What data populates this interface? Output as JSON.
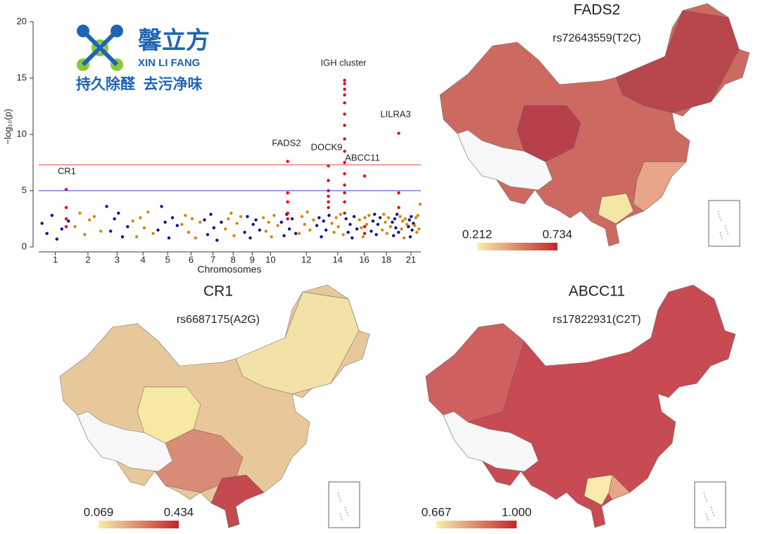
{
  "logo": {
    "name_cn": "馨立方",
    "name_en": "XIN LI FANG",
    "slogan": "持久除醛  去污净味"
  },
  "chart_data": [
    {
      "type": "manhattan",
      "ylabel": "−log₁₀(p)",
      "xlabel": "Chromosomes",
      "xlim": [
        0,
        2880
      ],
      "ylim": [
        0,
        20
      ],
      "yticks": [
        0,
        5,
        10,
        15,
        20
      ],
      "xticks": [
        {
          "value": 125,
          "label": "1"
        },
        {
          "value": 371,
          "label": "2"
        },
        {
          "value": 591,
          "label": "3"
        },
        {
          "value": 786,
          "label": "4"
        },
        {
          "value": 972,
          "label": "5"
        },
        {
          "value": 1148,
          "label": "6"
        },
        {
          "value": 1313,
          "label": "7"
        },
        {
          "value": 1465,
          "label": "8"
        },
        {
          "value": 1609,
          "label": "9"
        },
        {
          "value": 1747,
          "label": "10"
        },
        {
          "value": 2017,
          "label": "12"
        },
        {
          "value": 2253,
          "label": "14"
        },
        {
          "value": 2453,
          "label": "16"
        },
        {
          "value": 2620,
          "label": "18"
        },
        {
          "value": 2805,
          "label": "21"
        }
      ],
      "hlines": [
        {
          "value": 7.3,
          "color": "#e8413c"
        },
        {
          "value": 5,
          "color": "#3d3dd8"
        }
      ],
      "annotations": [
        "CR1",
        "FADS2",
        "DOCK9",
        "IGH cluster",
        "ABCC11",
        "LILRA3"
      ],
      "series": [
        {
          "color": "#10108a",
          "x": [
            25,
            62,
            100,
            137,
            174,
            224,
            512,
            542,
            571,
            601,
            631,
            670,
            899,
            926,
            953,
            981,
            1008,
            1044,
            1249,
            1273,
            1297,
            1320,
            1344,
            1376,
            1552,
            1573,
            1594,
            1616,
            1637,
            1665,
            1829,
            1849,
            1869,
            1889,
            1910,
            1937,
            2096,
            2113,
            2130,
            2147,
            2165,
            2188,
            2316,
            2332,
            2347,
            2362,
            2377,
            2398,
            2506,
            2519,
            2531,
            2544,
            2556,
            2573,
            2665,
            2674,
            2683,
            2691,
            2700,
            2712,
            2786,
            2793,
            2800,
            2807,
            2814,
            2824
          ],
          "values": [
            2.1,
            1.2,
            2.8,
            0.7,
            1.6,
            2.3,
            3.6,
            1.4,
            2.5,
            3.0,
            0.9,
            1.8,
            1.5,
            3.6,
            2.2,
            0.8,
            2.6,
            1.9,
            2.4,
            1.1,
            2.9,
            1.7,
            0.6,
            2.2,
            1.3,
            2.7,
            0.8,
            2.0,
            2.4,
            1.5,
            2.2,
            1.0,
            2.9,
            1.6,
            2.5,
            1.2,
            1.9,
            2.6,
            0.9,
            2.3,
            1.5,
            2.8,
            2.5,
            1.3,
            2.0,
            0.8,
            2.7,
            1.6,
            1.4,
            2.3,
            2.9,
            1.1,
            2.0,
            2.6,
            2.2,
            1.0,
            2.5,
            1.7,
            2.9,
            1.3,
            1.8,
            2.4,
            0.9,
            2.7,
            1.5,
            2.1
          ]
        },
        {
          "color": "#d4880e",
          "x": [
            273,
            310,
            346,
            383,
            419,
            468,
            709,
            738,
            766,
            795,
            824,
            862,
            1079,
            1105,
            1130,
            1156,
            1182,
            1216,
            1407,
            1429,
            1450,
            1472,
            1494,
            1523,
            1693,
            1713,
            1733,
            1754,
            1774,
            1801,
            1963,
            1984,
            2004,
            2024,
            2044,
            2071,
            2210,
            2226,
            2242,
            2258,
            2274,
            2295,
            2417,
            2431,
            2444,
            2458,
            2471,
            2489,
            2589,
            2601,
            2612,
            2624,
            2636,
            2651,
            2724,
            2734,
            2743,
            2753,
            2762,
            2775,
            2834,
            2842,
            2849,
            2857,
            2865,
            2875
          ],
          "values": [
            1.8,
            3.0,
            1.1,
            2.4,
            2.7,
            1.4,
            2.3,
            0.9,
            2.6,
            1.7,
            3.1,
            1.2,
            2.0,
            2.8,
            1.3,
            2.5,
            0.8,
            2.2,
            1.6,
            2.5,
            3.0,
            1.0,
            2.1,
            2.7,
            2.6,
            1.4,
            2.2,
            0.9,
            2.8,
            1.9,
            1.2,
            2.7,
            2.0,
            3.1,
            1.5,
            2.4,
            2.1,
            1.3,
            2.6,
            1.8,
            2.9,
            1.1,
            2.4,
            1.7,
            0.9,
            2.6,
            2.0,
            2.8,
            1.5,
            2.9,
            2.2,
            1.2,
            2.6,
            1.8,
            2.7,
            1.6,
            2.3,
            0.8,
            2.5,
            2.0,
            1.9,
            2.6,
            1.3,
            2.8,
            1.6,
            3.8
          ]
        },
        {
          "color": "#e8000b",
          "x": [
            207,
            207,
            207,
            207,
            1876,
            1876,
            1876,
            1876,
            1876,
            2183,
            2183,
            2183,
            2183,
            2183,
            2183,
            2305,
            2305,
            2305,
            2305,
            2305,
            2305,
            2305,
            2305,
            2305,
            2305,
            2305,
            2305,
            2305,
            2305,
            2305,
            2456,
            2456,
            2456,
            2713,
            2713,
            2713
          ],
          "values": [
            5.1,
            3.5,
            2.5,
            1.8,
            7.6,
            4.8,
            4.0,
            3.0,
            2.5,
            7.2,
            5.9,
            5.0,
            4.5,
            4.0,
            3.5,
            14.8,
            14.5,
            14.0,
            13.5,
            12.8,
            11.8,
            10.8,
            9.6,
            8.5,
            7.5,
            6.5,
            5.5,
            4.8,
            4.0,
            3.0,
            6.3,
            1.8,
            1.2,
            10.1,
            4.8,
            3.5
          ]
        }
      ]
    },
    {
      "type": "map",
      "title": "FADS2",
      "subtitle": "rs72643559(T2C)",
      "colorbar": {
        "range": [
          0.212,
          0.734
        ],
        "ticks": [
          0.212,
          0.734
        ],
        "colors": [
          "#f7eeaa",
          "#c0272d"
        ]
      }
    },
    {
      "type": "map",
      "title": "CR1",
      "subtitle": "rs6687175(A2G)",
      "colorbar": {
        "range": [
          0.069,
          0.434
        ],
        "ticks": [
          0.069,
          0.434
        ],
        "colors": [
          "#f7eeaa",
          "#c0272d"
        ]
      }
    },
    {
      "type": "map",
      "title": "ABCC11",
      "subtitle": "rs17822931(C2T)",
      "colorbar": {
        "range": [
          0.667,
          1
        ],
        "ticks": [
          0.667,
          {
            "value": 1,
            "label": "1.000"
          }
        ],
        "colors": [
          "#f7eeaa",
          "#c0272d"
        ]
      }
    }
  ]
}
